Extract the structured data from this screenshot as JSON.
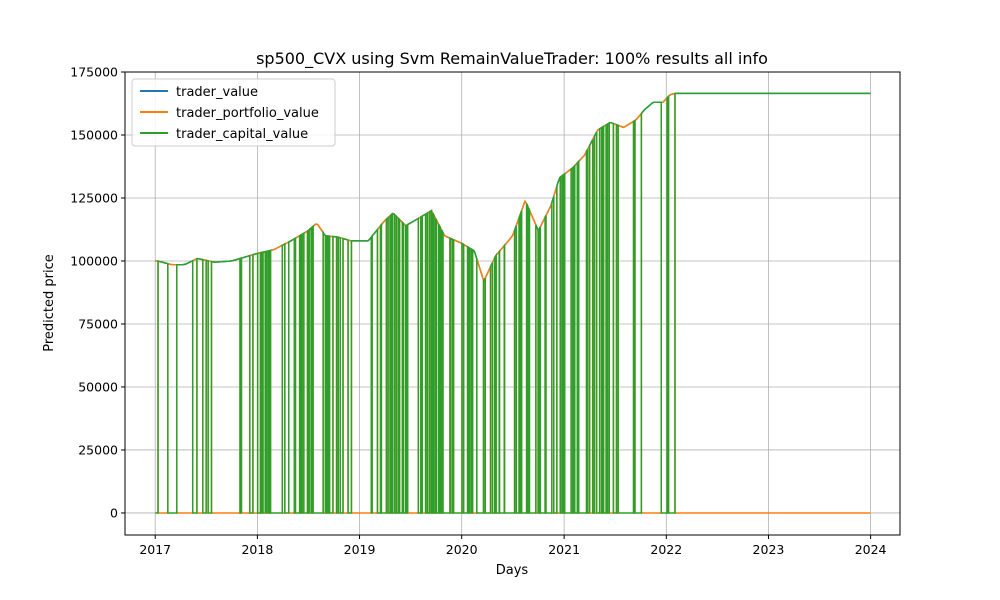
{
  "chart_data": {
    "type": "line",
    "title": "sp500_CVX using Svm RemainValueTrader: 100% results all info",
    "xlabel": "Days",
    "ylabel": "Predicted price",
    "xlim": [
      "2016-09-15",
      "2024-04-15"
    ],
    "ylim": [
      -8750,
      175000
    ],
    "x_ticks": [
      "2017",
      "2018",
      "2019",
      "2020",
      "2021",
      "2022",
      "2023",
      "2024"
    ],
    "y_ticks": [
      0,
      25000,
      50000,
      75000,
      100000,
      125000,
      150000,
      175000
    ],
    "y_tick_labels": [
      "0",
      "25000",
      "50000",
      "75000",
      "100000",
      "125000",
      "150000",
      "175000"
    ],
    "grid": true,
    "legend_position": "top-left",
    "series": [
      {
        "name": "trader_value",
        "color": "#1f77b4"
      },
      {
        "name": "trader_portfolio_value",
        "color": "#ff7f0e"
      },
      {
        "name": "trader_capital_value",
        "color": "#2ca02c"
      }
    ],
    "trader_value_envelope": {
      "x": [
        "2017-01-01",
        "2017-01-10",
        "2017-03-01",
        "2017-04-15",
        "2017-06-01",
        "2017-08-01",
        "2017-10-01",
        "2018-01-01",
        "2018-03-01",
        "2018-05-01",
        "2018-07-01",
        "2018-08-01",
        "2018-09-01",
        "2018-10-15",
        "2018-12-01",
        "2019-02-01",
        "2019-04-01",
        "2019-05-01",
        "2019-06-15",
        "2019-08-01",
        "2019-09-15",
        "2019-11-01",
        "2020-01-01",
        "2020-02-15",
        "2020-03-20",
        "2020-05-01",
        "2020-07-01",
        "2020-08-15",
        "2020-10-01",
        "2020-11-15",
        "2020-12-15",
        "2021-02-01",
        "2021-03-15",
        "2021-05-01",
        "2021-06-15",
        "2021-08-01",
        "2021-09-15",
        "2021-10-15",
        "2021-11-15",
        "2021-12-20",
        "2022-01-15",
        "2022-02-01",
        "2023-12-31"
      ],
      "values": [
        100000,
        100000,
        98500,
        98500,
        101000,
        99500,
        100000,
        103000,
        104500,
        108000,
        112000,
        115000,
        110000,
        109500,
        108000,
        108000,
        116000,
        119000,
        114000,
        117000,
        120000,
        110000,
        107000,
        104000,
        92000,
        102000,
        110000,
        124000,
        112000,
        122000,
        133000,
        137000,
        142000,
        152000,
        155000,
        153000,
        156000,
        160000,
        163000,
        163000,
        166000,
        166500,
        166500
      ]
    },
    "trader_portfolio_value_baseline": 0,
    "trader_portfolio_value_dips": [
      {
        "x": "2020-03-20",
        "y": 86000
      },
      {
        "x": "2019-05-20",
        "y": 108000
      }
    ],
    "trader_capital_value_final": 166500,
    "trading_active_until": "2022-02-01"
  }
}
